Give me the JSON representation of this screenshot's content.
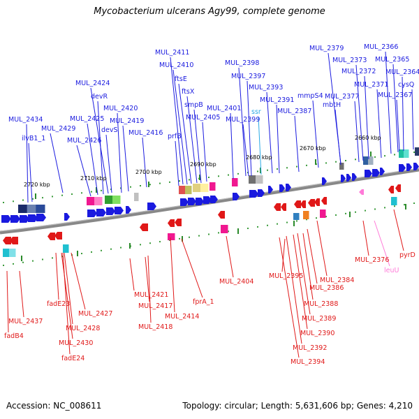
{
  "title": "Mycobacterium ulcerans Agy99, complete genome",
  "footer": {
    "accession": "Accession: NC_008611",
    "summary": "Topology: circular; Length: 5,631,606 bp; Genes: 4,210"
  },
  "colors": {
    "forward": "#1a1adf",
    "reverse": "#e01818",
    "rrna": "#ff7ad8",
    "misc": "#2aa9e5",
    "tick": "#2a8a2a",
    "backbone": "#808080"
  },
  "scale_labels": [
    "2720 kbp",
    "2710 kbp",
    "2700 kbp",
    "2690 kbp",
    "2680 kbp",
    "2670 kbp",
    "2660 kbp"
  ],
  "forward_labels": [
    "MUL_2434",
    "ilvB1_1",
    "MUL_2429",
    "MUL_2426",
    "MUL_2425",
    "devR",
    "MUL_2424",
    "devS",
    "MUL_2420",
    "MUL_2419",
    "MUL_2416",
    "prfB",
    "MUL_2411",
    "MUL_2410",
    "ftsE",
    "ftsX",
    "smpB",
    "MUL_2405",
    "MUL_2401",
    "MUL_2398",
    "MUL_2397",
    "ssr",
    "MUL_2399",
    "MUL_2393",
    "MUL_2391",
    "MUL_2387",
    "mmpS4",
    "mbtH",
    "MUL_2379",
    "MUL_2377",
    "MUL_2373",
    "MUL_2372",
    "MUL_2371",
    "MUL_2366",
    "MUL_2365",
    "MUL_2364",
    "MUL_2367",
    "cysQ"
  ],
  "reverse_labels": [
    "MUL_2437",
    "fadB4",
    "fadE23",
    "MUL_2428",
    "MUL_2430",
    "fadE24",
    "MUL_2427",
    "MUL_2421",
    "MUL_2417",
    "MUL_2418",
    "MUL_2414",
    "fprA_1",
    "MUL_2404",
    "MUL_2395",
    "MUL_2394",
    "MUL_2392",
    "MUL_2390",
    "MUL_2389",
    "MUL_2388",
    "MUL_2386",
    "MUL_2384",
    "MUL_2376",
    "leuU",
    "pyrD"
  ]
}
